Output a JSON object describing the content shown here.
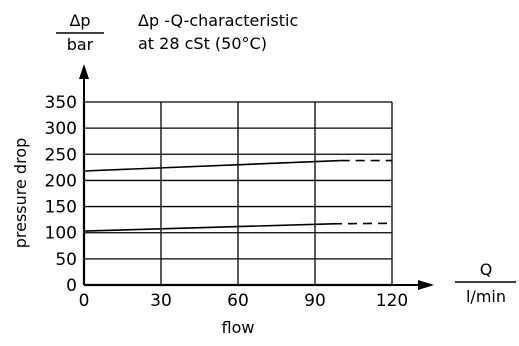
{
  "chart_data": {
    "type": "line",
    "title_lines": [
      "Δp -Q-characteristic",
      "at 28 cSt (50°C)"
    ],
    "y_unit_top": "Δp",
    "y_unit_bottom": "bar",
    "x_unit_top": "Q",
    "x_unit_bottom": "l/min",
    "xlabel": "flow",
    "ylabel": "pressure drop",
    "xlim": [
      0,
      120
    ],
    "ylim": [
      0,
      350
    ],
    "x_ticks": [
      0,
      30,
      60,
      90,
      120
    ],
    "y_ticks": [
      0,
      50,
      100,
      150,
      200,
      250,
      300,
      350
    ],
    "grid": true,
    "series": [
      {
        "solid": [
          [
            0,
            218
          ],
          [
            100,
            238
          ]
        ],
        "dashed": [
          [
            100,
            238
          ],
          [
            120,
            238
          ]
        ]
      },
      {
        "solid": [
          [
            0,
            103
          ],
          [
            97,
            117
          ]
        ],
        "dashed": [
          [
            97,
            117
          ],
          [
            120,
            118
          ]
        ]
      }
    ],
    "line_color": "#000000",
    "grid_color": "#000000"
  }
}
